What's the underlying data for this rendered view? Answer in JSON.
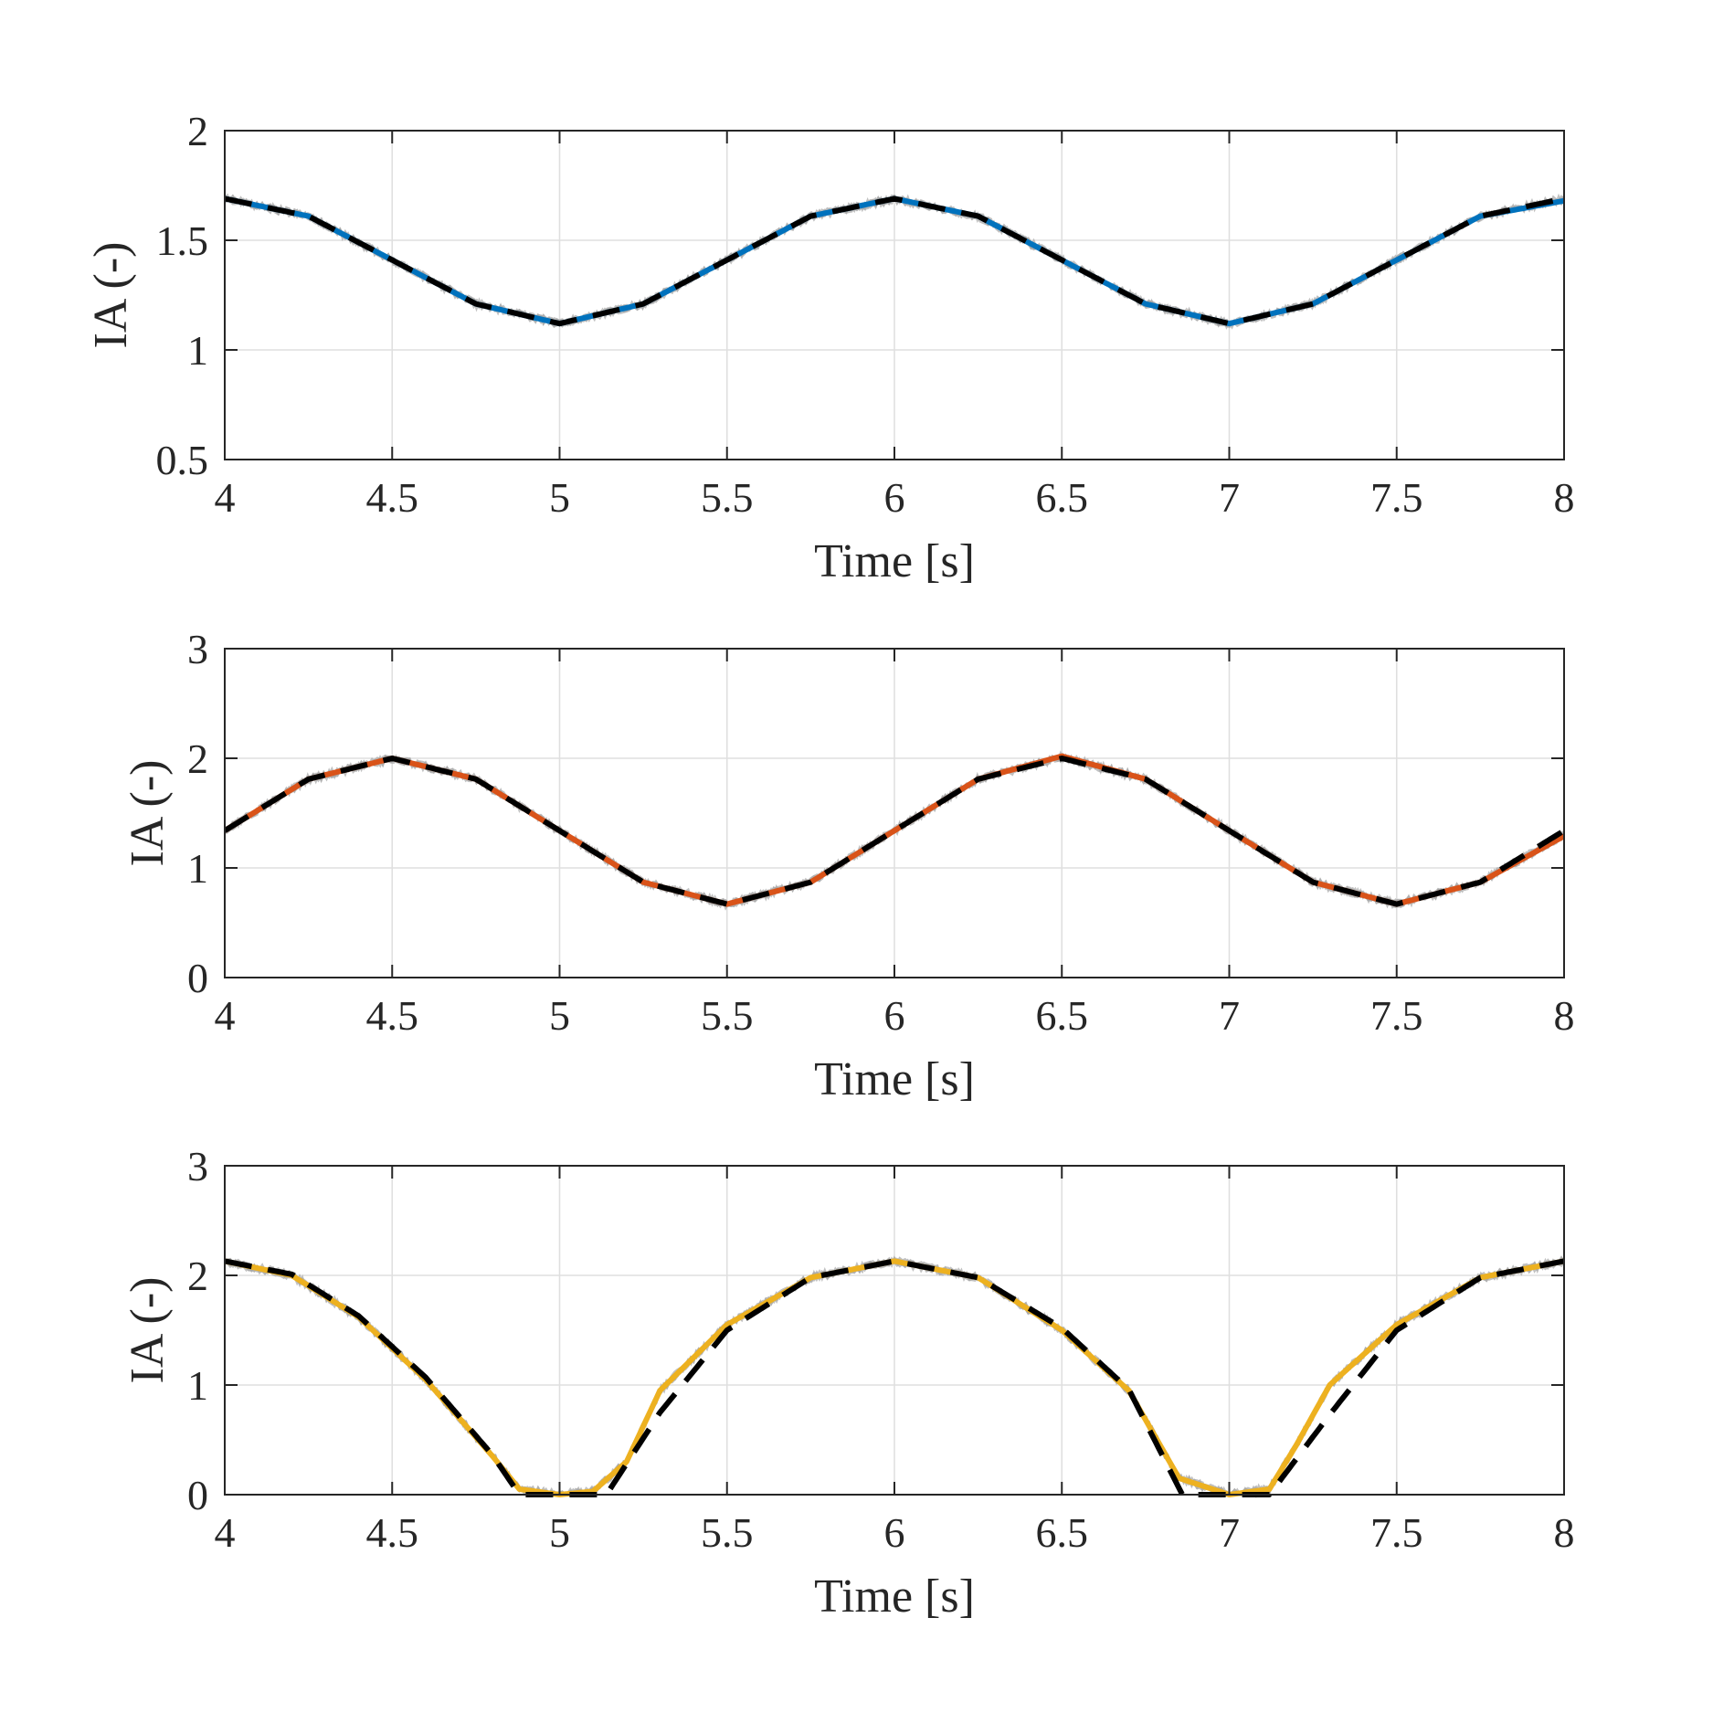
{
  "chart_data": [
    {
      "type": "line",
      "xlabel": "Time [s]",
      "ylabel": "IA (-)",
      "xlim": [
        4,
        8
      ],
      "ylim": [
        0.5,
        2
      ],
      "xticks": [
        "4",
        "4.5",
        "5",
        "5.5",
        "6",
        "6.5",
        "7",
        "7.5",
        "8"
      ],
      "yticks": [
        "0.5",
        "1",
        "1.5",
        "2"
      ],
      "grid": true,
      "series": [
        {
          "role": "noisy-band",
          "color": "#a6a6a6",
          "x": [
            4.0,
            4.25,
            4.5,
            4.75,
            5.0,
            5.25,
            5.5,
            5.75,
            6.0,
            6.25,
            6.5,
            6.75,
            7.0,
            7.25,
            7.5,
            7.75,
            8.0
          ],
          "y": [
            1.69,
            1.61,
            1.41,
            1.21,
            1.12,
            1.21,
            1.41,
            1.61,
            1.69,
            1.61,
            1.41,
            1.21,
            1.12,
            1.21,
            1.41,
            1.61,
            1.69
          ]
        },
        {
          "role": "solid",
          "color": "#0072bd",
          "x": [
            4.0,
            4.25,
            4.5,
            4.75,
            5.0,
            5.25,
            5.5,
            5.75,
            6.0,
            6.25,
            6.5,
            6.75,
            7.0,
            7.25,
            7.5,
            7.75,
            8.0
          ],
          "y": [
            1.69,
            1.61,
            1.41,
            1.21,
            1.12,
            1.21,
            1.41,
            1.61,
            1.69,
            1.61,
            1.41,
            1.21,
            1.12,
            1.21,
            1.41,
            1.61,
            1.68
          ]
        },
        {
          "role": "dashed",
          "color": "#000000",
          "x": [
            4.0,
            4.25,
            4.5,
            4.75,
            5.0,
            5.25,
            5.5,
            5.75,
            6.0,
            6.25,
            6.5,
            6.75,
            7.0,
            7.25,
            7.5,
            7.75,
            8.0
          ],
          "y": [
            1.69,
            1.61,
            1.41,
            1.21,
            1.12,
            1.21,
            1.41,
            1.61,
            1.69,
            1.61,
            1.41,
            1.21,
            1.12,
            1.21,
            1.41,
            1.61,
            1.69
          ]
        }
      ]
    },
    {
      "type": "line",
      "xlabel": "Time [s]",
      "ylabel": "IA (-)",
      "xlim": [
        4,
        8
      ],
      "ylim": [
        0,
        3
      ],
      "xticks": [
        "4",
        "4.5",
        "5",
        "5.5",
        "6",
        "6.5",
        "7",
        "7.5",
        "8"
      ],
      "yticks": [
        "0",
        "1",
        "2",
        "3"
      ],
      "grid": true,
      "series": [
        {
          "role": "noisy-band",
          "color": "#a6a6a6",
          "x": [
            4.0,
            4.25,
            4.5,
            4.75,
            5.0,
            5.25,
            5.5,
            5.75,
            6.0,
            6.25,
            6.5,
            6.75,
            7.0,
            7.25,
            7.5,
            7.75,
            8.0
          ],
          "y": [
            1.34,
            1.81,
            2.0,
            1.81,
            1.34,
            0.87,
            0.67,
            0.87,
            1.34,
            1.81,
            2.01,
            1.81,
            1.34,
            0.87,
            0.67,
            0.87,
            1.3
          ]
        },
        {
          "role": "solid",
          "color": "#d95319",
          "x": [
            4.0,
            4.25,
            4.5,
            4.75,
            5.0,
            5.25,
            5.5,
            5.75,
            6.0,
            6.25,
            6.5,
            6.75,
            7.0,
            7.25,
            7.5,
            7.75,
            8.0
          ],
          "y": [
            1.34,
            1.81,
            2.0,
            1.81,
            1.34,
            0.87,
            0.67,
            0.87,
            1.34,
            1.81,
            2.02,
            1.81,
            1.34,
            0.87,
            0.67,
            0.87,
            1.29
          ]
        },
        {
          "role": "dashed",
          "color": "#000000",
          "x": [
            4.0,
            4.25,
            4.5,
            4.75,
            5.0,
            5.25,
            5.5,
            5.75,
            6.0,
            6.25,
            6.5,
            6.75,
            7.0,
            7.25,
            7.5,
            7.75,
            8.0
          ],
          "y": [
            1.34,
            1.81,
            2.0,
            1.81,
            1.34,
            0.87,
            0.67,
            0.87,
            1.34,
            1.81,
            2.0,
            1.81,
            1.34,
            0.87,
            0.67,
            0.87,
            1.34
          ]
        }
      ]
    },
    {
      "type": "line",
      "xlabel": "Time [s]",
      "ylabel": "IA (-)",
      "xlim": [
        4,
        8
      ],
      "ylim": [
        0,
        3
      ],
      "xticks": [
        "4",
        "4.5",
        "5",
        "5.5",
        "6",
        "6.5",
        "7",
        "7.5",
        "8"
      ],
      "yticks": [
        "0",
        "1",
        "2",
        "3"
      ],
      "grid": true,
      "series": [
        {
          "role": "noisy-band",
          "color": "#a6a6a6",
          "x": [
            4.0,
            4.2,
            4.4,
            4.6,
            4.8,
            4.88,
            5.0,
            5.1,
            5.2,
            5.3,
            5.5,
            5.75,
            6.0,
            6.25,
            6.5,
            6.7,
            6.85,
            7.0,
            7.12,
            7.2,
            7.3,
            7.5,
            7.75,
            8.0
          ],
          "y": [
            2.13,
            2.0,
            1.62,
            1.05,
            0.35,
            0.05,
            0.0,
            0.03,
            0.3,
            0.95,
            1.55,
            1.98,
            2.13,
            1.98,
            1.5,
            0.95,
            0.15,
            0.0,
            0.05,
            0.45,
            1.0,
            1.55,
            1.98,
            2.13
          ]
        },
        {
          "role": "solid",
          "color": "#edb120",
          "x": [
            4.0,
            4.2,
            4.4,
            4.6,
            4.8,
            4.88,
            5.0,
            5.1,
            5.2,
            5.3,
            5.5,
            5.75,
            6.0,
            6.25,
            6.5,
            6.7,
            6.85,
            7.0,
            7.12,
            7.2,
            7.3,
            7.5,
            7.75,
            8.0
          ],
          "y": [
            2.13,
            2.0,
            1.62,
            1.05,
            0.35,
            0.05,
            0.0,
            0.03,
            0.3,
            0.95,
            1.55,
            1.98,
            2.13,
            1.98,
            1.5,
            0.95,
            0.15,
            0.0,
            0.05,
            0.45,
            1.0,
            1.55,
            1.98,
            2.13
          ]
        },
        {
          "role": "dashed",
          "color": "#000000",
          "x": [
            4.0,
            4.2,
            4.4,
            4.6,
            4.8,
            4.88,
            4.88,
            5.14,
            5.14,
            5.3,
            5.5,
            5.75,
            6.0,
            6.25,
            6.5,
            6.7,
            6.86,
            6.86,
            7.12,
            7.12,
            7.3,
            7.5,
            7.75,
            8.0
          ],
          "y": [
            2.13,
            2.01,
            1.63,
            1.07,
            0.36,
            0.0,
            0.0,
            0.0,
            0.0,
            0.75,
            1.5,
            1.98,
            2.13,
            1.98,
            1.52,
            0.96,
            0.0,
            0.0,
            0.0,
            0.0,
            0.73,
            1.5,
            1.98,
            2.13
          ]
        }
      ]
    }
  ]
}
